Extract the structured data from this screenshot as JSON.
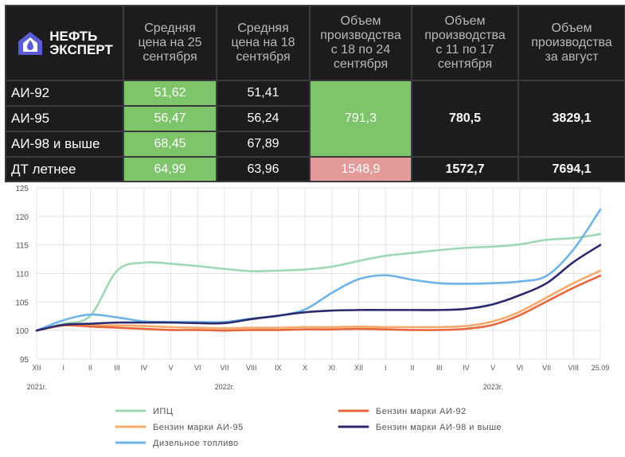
{
  "table": {
    "logo": {
      "line1": "НЕФТЬ",
      "line2": "ЭКСПЕРТ",
      "icon": "house-drop-icon"
    },
    "headers": [
      "Средняя\nцена на 25\nсентября",
      "Средняя\nцена на 18\nсентября",
      "Объем\nпроизводства\nс 18 по 24\nсентября",
      "Объем\nпроизводства\nс 11 по 17\nсентября",
      "Объем\nпроизводства\nза август"
    ],
    "rows": [
      {
        "label": "АИ-92",
        "p25": "51,62",
        "p18": "51,41"
      },
      {
        "label": "АИ-95",
        "p25": "56,47",
        "p18": "56,24"
      },
      {
        "label": "АИ-98 и выше",
        "p25": "68,45",
        "p18": "67,89"
      },
      {
        "label": "ДТ летнее",
        "p25": "64,99",
        "p18": "63,96"
      }
    ],
    "gasoline_volumes": {
      "w1824": "791,3",
      "w1117": "780,5",
      "aug": "3829,1"
    },
    "diesel_volumes": {
      "w1824": "1548,9",
      "w1117": "1572,7",
      "aug": "7694,1"
    },
    "colors": {
      "green": "#7dc46b",
      "pink": "#e59a9a",
      "dark": "#1c1c1e"
    }
  },
  "chart_data": {
    "type": "line",
    "x": [
      "XII",
      "I",
      "II",
      "III",
      "IV",
      "V",
      "VI",
      "VII",
      "VIII",
      "IX",
      "X",
      "XI",
      "XII",
      "I",
      "II",
      "III",
      "IV",
      "V",
      "VI",
      "VII",
      "VIII",
      "25.09"
    ],
    "year_labels": [
      "2021г.",
      "2022г.",
      "2023г."
    ],
    "ylim": [
      95,
      125
    ],
    "yticks": [
      95,
      100,
      105,
      110,
      115,
      120,
      125
    ],
    "grid": true,
    "legend_position": "bottom",
    "series": [
      {
        "name": "ИПЦ",
        "color": "#9fd8b4",
        "values": [
          100,
          101.2,
          102.6,
          110.5,
          111.9,
          111.7,
          111.3,
          110.8,
          110.4,
          110.5,
          110.7,
          111.2,
          112.2,
          113.1,
          113.6,
          114.1,
          114.5,
          114.7,
          115.1,
          115.9,
          116.2,
          116.9
        ]
      },
      {
        "name": "Бензин марки АИ-92",
        "color": "#e8663c",
        "values": [
          100,
          100.9,
          100.7,
          100.5,
          100.3,
          100.1,
          100.1,
          100.0,
          100.1,
          100.1,
          100.2,
          100.2,
          100.3,
          100.2,
          100.1,
          100.1,
          100.3,
          101.0,
          102.7,
          105.1,
          107.5,
          109.6
        ]
      },
      {
        "name": "Бензин марки АИ-95",
        "color": "#f5a96a",
        "values": [
          100,
          100.9,
          100.9,
          100.9,
          100.8,
          100.6,
          100.5,
          100.4,
          100.5,
          100.5,
          100.6,
          100.6,
          100.7,
          100.6,
          100.6,
          100.6,
          100.8,
          101.6,
          103.3,
          105.8,
          108.3,
          110.5
        ]
      },
      {
        "name": "Бензин марки АИ-98 и выше",
        "color": "#2b2a6e",
        "values": [
          100,
          101.0,
          101.2,
          101.4,
          101.4,
          101.4,
          101.3,
          101.3,
          102.0,
          102.6,
          103.2,
          103.5,
          103.6,
          103.6,
          103.6,
          103.6,
          103.8,
          104.6,
          106.2,
          108.3,
          112.0,
          115.0
        ]
      },
      {
        "name": "Дизельное топливо",
        "color": "#6fb4e8",
        "values": [
          100,
          101.8,
          102.8,
          102.3,
          101.6,
          101.5,
          101.5,
          101.5,
          102.1,
          102.6,
          103.7,
          106.6,
          109.0,
          109.7,
          108.9,
          108.3,
          108.2,
          108.3,
          108.6,
          109.6,
          114.2,
          121.2
        ]
      }
    ]
  }
}
